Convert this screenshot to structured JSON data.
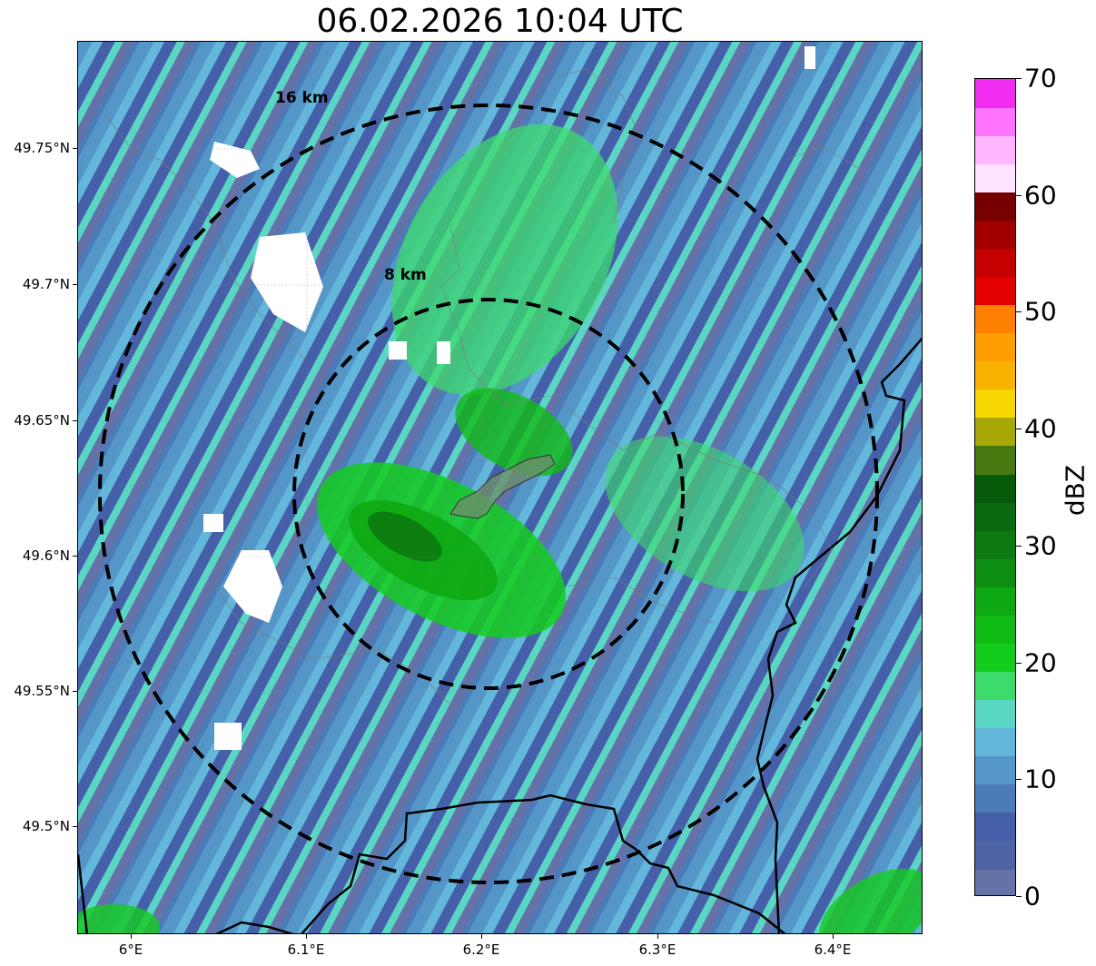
{
  "title": "06.02.2026 10:04 UTC",
  "map": {
    "lat_ticks": [
      "49.75°N",
      "49.7°N",
      "49.65°N",
      "49.6°N",
      "49.55°N",
      "49.5°N"
    ],
    "lon_ticks": [
      "6°E",
      "6.1°E",
      "6.2°E",
      "6.3°E",
      "6.4°E"
    ],
    "range_rings": [
      {
        "label": "8 km",
        "radius_km": 8
      },
      {
        "label": "16 km",
        "radius_km": 16
      }
    ],
    "grid": true
  },
  "colorbar": {
    "label": "dBZ",
    "tick_labels": [
      "0",
      "10",
      "20",
      "30",
      "40",
      "50",
      "60",
      "70"
    ],
    "colors": [
      "#6472a8",
      "#4e62a6",
      "#4560a8",
      "#4b7bb8",
      "#5596c8",
      "#62b7da",
      "#5ad6c4",
      "#3cdb6c",
      "#14cc1e",
      "#10bb14",
      "#0ea812",
      "#0d8f12",
      "#0c7a10",
      "#096a0e",
      "#075a0a",
      "#487810",
      "#a8a808",
      "#f6d800",
      "#fab200",
      "#ff9e00",
      "#ff8000",
      "#e20000",
      "#c40000",
      "#a20000",
      "#760000",
      "#ffe2ff",
      "#ffb6ff",
      "#ff74ff",
      "#f02cf0"
    ]
  }
}
